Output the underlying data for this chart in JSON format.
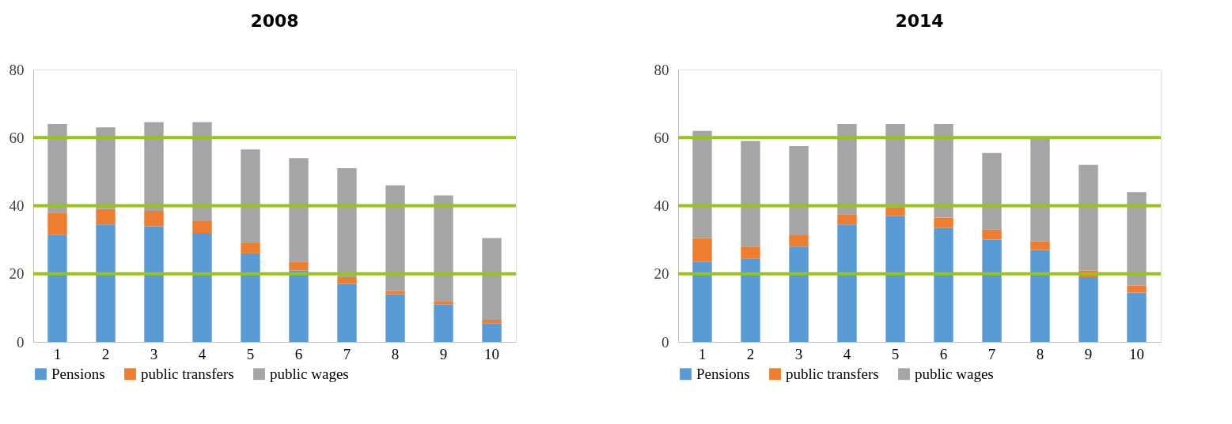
{
  "chart_data": [
    {
      "type": "bar",
      "title": "2008",
      "categories": [
        "1",
        "2",
        "3",
        "4",
        "5",
        "6",
        "7",
        "8",
        "9",
        "10"
      ],
      "stacked": true,
      "ylim": [
        0,
        80
      ],
      "yticks": [
        0,
        20,
        40,
        60,
        80
      ],
      "grid": false,
      "legend": "bottom",
      "series": [
        {
          "name": "Pensions",
          "color": "#5b9bd5",
          "values": [
            31.5,
            34.5,
            34,
            32,
            26,
            21,
            17,
            14,
            11,
            5.5
          ]
        },
        {
          "name": "public transfers",
          "color": "#ed7d31",
          "values": [
            6.5,
            4.5,
            4.5,
            3.5,
            3,
            2.5,
            2,
            1,
            1,
            1
          ]
        },
        {
          "name": "public wages",
          "color": "#a5a5a5",
          "values": [
            26,
            24,
            26,
            29,
            27.5,
            30.5,
            32,
            31,
            31,
            24
          ]
        }
      ],
      "ref_lines": [
        {
          "axis": "y",
          "value": 20,
          "color": "#99c21b"
        },
        {
          "axis": "y",
          "value": 40,
          "color": "#99c21b"
        },
        {
          "axis": "y",
          "value": 60,
          "color": "#99c21b"
        }
      ]
    },
    {
      "type": "bar",
      "title": "2014",
      "categories": [
        "1",
        "2",
        "3",
        "4",
        "5",
        "6",
        "7",
        "8",
        "9",
        "10"
      ],
      "stacked": true,
      "ylim": [
        0,
        80
      ],
      "yticks": [
        0,
        20,
        40,
        60,
        80
      ],
      "grid": false,
      "legend": "bottom",
      "series": [
        {
          "name": "Pensions",
          "color": "#5b9bd5",
          "values": [
            23.5,
            24.5,
            28,
            34.5,
            37,
            33.5,
            30,
            27,
            19,
            14.5
          ]
        },
        {
          "name": "public transfers",
          "color": "#ed7d31",
          "values": [
            7,
            3.5,
            3.5,
            3,
            2.5,
            3,
            3,
            2.5,
            2,
            2
          ]
        },
        {
          "name": "public wages",
          "color": "#a5a5a5",
          "values": [
            31.5,
            31,
            26,
            26.5,
            24.5,
            27.5,
            22.5,
            30.5,
            31,
            27.5
          ]
        }
      ],
      "ref_lines": [
        {
          "axis": "y",
          "value": 20,
          "color": "#99c21b"
        },
        {
          "axis": "y",
          "value": 40,
          "color": "#99c21b"
        },
        {
          "axis": "y",
          "value": 60,
          "color": "#99c21b"
        }
      ]
    }
  ]
}
